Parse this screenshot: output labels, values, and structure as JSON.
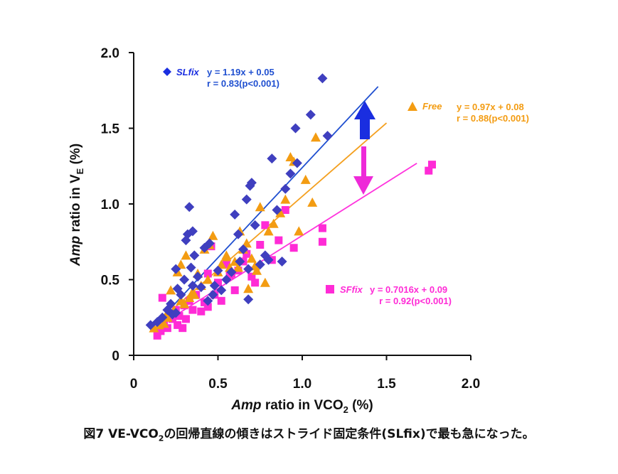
{
  "caption": {
    "prefix": "図7 VE-VCO",
    "sub": "2",
    "suffix": "の回帰直線の傾きはストライド固定条件(SLfix)で最も急になった。"
  },
  "chart_data": {
    "type": "scatter",
    "xlabel": {
      "italic": "Amp",
      "text": " ratio in VCO",
      "sub": "2",
      "tail": " (%)"
    },
    "ylabel": {
      "italic": "Amp",
      "text": " ratio in V",
      "sub": "E",
      "tail": " (%)"
    },
    "xlim": [
      0,
      2.0
    ],
    "ylim": [
      0,
      2.0
    ],
    "xticks": [
      {
        "value": 0,
        "label": "0"
      },
      {
        "value": 0.5,
        "label": "0.5"
      },
      {
        "value": 1.0,
        "label": "1.0"
      },
      {
        "value": 1.5,
        "label": "1.5"
      },
      {
        "value": 2.0,
        "label": "2.0"
      }
    ],
    "yticks": [
      {
        "value": 0,
        "label": "0"
      },
      {
        "value": 0.5,
        "label": "0.5"
      },
      {
        "value": 1.0,
        "label": "1.0"
      },
      {
        "value": 1.5,
        "label": "1.5"
      },
      {
        "value": 2.0,
        "label": "2.0"
      }
    ],
    "series": [
      {
        "name": "SLfix",
        "marker": "diamond",
        "color": "#3f3fbf",
        "line_color": "#1f4fd0",
        "equation": "y = 1.19x + 0.05",
        "r": "r = 0.83(p<0.001)",
        "fit": {
          "slope": 1.19,
          "intercept": 0.05,
          "x_range": [
            0.12,
            1.45
          ]
        },
        "x": [
          0.1,
          0.14,
          0.17,
          0.2,
          0.22,
          0.23,
          0.25,
          0.26,
          0.28,
          0.3,
          0.31,
          0.32,
          0.33,
          0.34,
          0.35,
          0.36,
          0.38,
          0.4,
          0.42,
          0.44,
          0.45,
          0.48,
          0.5,
          0.52,
          0.55,
          0.58,
          0.6,
          0.62,
          0.63,
          0.65,
          0.67,
          0.68,
          0.69,
          0.7,
          0.72,
          0.75,
          0.78,
          0.8,
          0.82,
          0.85,
          0.88,
          0.9,
          0.93,
          0.96,
          0.97,
          1.05,
          1.12,
          1.15,
          0.68,
          0.25,
          0.35,
          0.47
        ],
        "y": [
          0.2,
          0.22,
          0.25,
          0.3,
          0.34,
          0.27,
          0.57,
          0.44,
          0.4,
          0.5,
          0.76,
          0.8,
          0.98,
          0.58,
          0.82,
          0.66,
          0.52,
          0.45,
          0.71,
          0.36,
          0.74,
          0.46,
          0.56,
          0.43,
          0.5,
          0.55,
          0.93,
          0.8,
          0.62,
          0.7,
          1.03,
          0.37,
          1.12,
          1.14,
          0.86,
          0.6,
          0.66,
          0.63,
          1.3,
          0.96,
          0.62,
          1.1,
          1.2,
          1.5,
          1.27,
          1.59,
          1.83,
          1.45,
          0.57,
          0.28,
          0.46,
          0.4
        ]
      },
      {
        "name": "Free",
        "marker": "triangle",
        "color": "#f39c12",
        "line_color": "#f4a020",
        "equation": "y = 0.97x + 0.08",
        "r": "r = 0.88(p<0.001)",
        "fit": {
          "slope": 0.97,
          "intercept": 0.08,
          "x_range": [
            0.12,
            1.5
          ]
        },
        "x": [
          0.12,
          0.15,
          0.18,
          0.2,
          0.22,
          0.24,
          0.26,
          0.28,
          0.3,
          0.31,
          0.33,
          0.35,
          0.38,
          0.4,
          0.42,
          0.45,
          0.47,
          0.5,
          0.52,
          0.55,
          0.57,
          0.6,
          0.62,
          0.63,
          0.65,
          0.67,
          0.68,
          0.7,
          0.72,
          0.75,
          0.78,
          0.8,
          0.83,
          0.87,
          0.9,
          0.93,
          0.95,
          0.98,
          1.02,
          1.06,
          1.08,
          0.73,
          0.55,
          0.44,
          0.36,
          0.28,
          0.2
        ],
        "y": [
          0.18,
          0.2,
          0.21,
          0.25,
          0.43,
          0.3,
          0.55,
          0.6,
          0.34,
          0.66,
          0.38,
          0.42,
          0.54,
          0.46,
          0.7,
          0.73,
          0.79,
          0.55,
          0.6,
          0.65,
          0.58,
          0.62,
          0.58,
          0.82,
          0.7,
          0.74,
          0.44,
          0.64,
          0.59,
          0.98,
          0.48,
          0.82,
          0.87,
          0.94,
          1.03,
          1.31,
          1.28,
          0.82,
          1.16,
          1.01,
          1.44,
          0.56,
          0.66,
          0.5,
          0.4,
          0.36,
          0.28
        ]
      },
      {
        "name": "SFfix",
        "marker": "square",
        "color": "#ff2bd6",
        "line_color": "#ff33dd",
        "equation": "y = 0.7016x + 0.09",
        "r": "r = 0.92(p<0.001)",
        "fit": {
          "slope": 0.7016,
          "intercept": 0.09,
          "x_range": [
            0.12,
            1.68
          ]
        },
        "x": [
          0.14,
          0.16,
          0.17,
          0.18,
          0.2,
          0.21,
          0.23,
          0.25,
          0.27,
          0.29,
          0.3,
          0.31,
          0.33,
          0.35,
          0.37,
          0.4,
          0.42,
          0.44,
          0.46,
          0.48,
          0.5,
          0.52,
          0.55,
          0.57,
          0.6,
          0.62,
          0.65,
          0.67,
          0.7,
          0.72,
          0.75,
          0.78,
          0.82,
          0.86,
          0.9,
          0.95,
          1.12,
          1.12,
          1.75,
          1.77,
          0.58,
          0.44,
          0.26
        ],
        "y": [
          0.13,
          0.16,
          0.38,
          0.22,
          0.18,
          0.27,
          0.24,
          0.3,
          0.26,
          0.18,
          0.33,
          0.24,
          0.36,
          0.3,
          0.4,
          0.29,
          0.35,
          0.54,
          0.72,
          0.4,
          0.48,
          0.36,
          0.6,
          0.53,
          0.43,
          0.56,
          0.62,
          0.67,
          0.52,
          0.48,
          0.73,
          0.86,
          0.63,
          0.76,
          0.96,
          0.71,
          0.84,
          0.75,
          1.22,
          1.26,
          0.54,
          0.32,
          0.2
        ]
      }
    ],
    "legend_placement": "inline near each series"
  }
}
